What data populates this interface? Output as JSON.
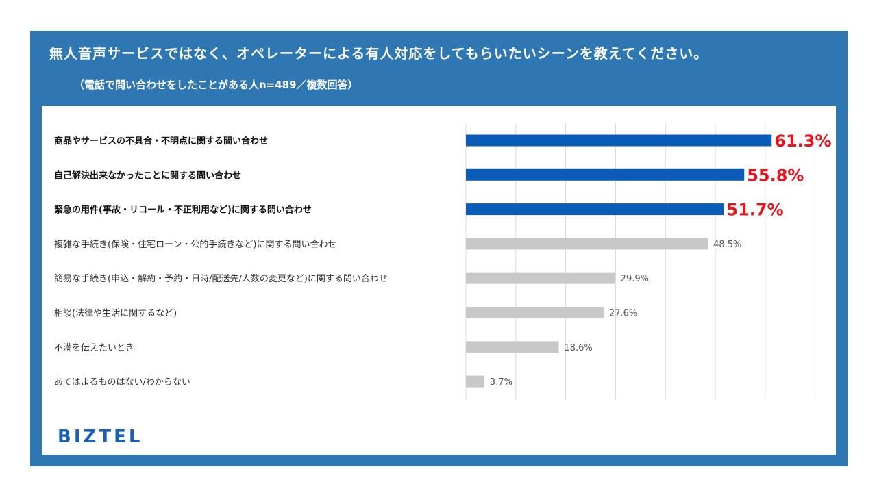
{
  "header": {
    "title": "無人音声サービスではなく、オペレーターによる有人対応をしてもらいたいシーンを教えてください。",
    "subtitle": "（電話で問い合わせをしたことがある人n=489／複数回答）"
  },
  "brand": "BIZTEL",
  "colors": {
    "frame": "#2f77b2",
    "highlight_bar": "#0b5cb8",
    "normal_bar": "#c8c8c8",
    "highlight_label": "#e8141c",
    "normal_label": "#555555",
    "grid": "#d9d9d9"
  },
  "chart_data": {
    "type": "bar",
    "orientation": "horizontal",
    "categories": [
      "商品やサービスの不具合・不明点に関する問い合わせ",
      "自己解決出来なかったことに関する問い合わせ",
      "緊急の用件(事故・リコール・不正利用など)に関する問い合わせ",
      "複雑な手続き(保険・住宅ローン・公的手続きなど)に関する問い合わせ",
      "簡易な手続き(申込・解約・予約・日時/配送先/人数の変更など)に関する問い合わせ",
      "相談(法律や生活に関するなど)",
      "不満を伝えたいとき",
      "あてはまるものはない/わからない"
    ],
    "values": [
      61.3,
      55.8,
      51.7,
      48.5,
      29.9,
      27.6,
      18.6,
      3.7
    ],
    "labels": [
      "61.3%",
      "55.8%",
      "51.7%",
      "48.5%",
      "29.9%",
      "27.6%",
      "18.6%",
      "3.7%"
    ],
    "highlighted": [
      true,
      true,
      true,
      false,
      false,
      false,
      false,
      false
    ],
    "xlim": [
      0,
      70
    ],
    "grid": true,
    "title": "",
    "xlabel": "",
    "ylabel": ""
  }
}
